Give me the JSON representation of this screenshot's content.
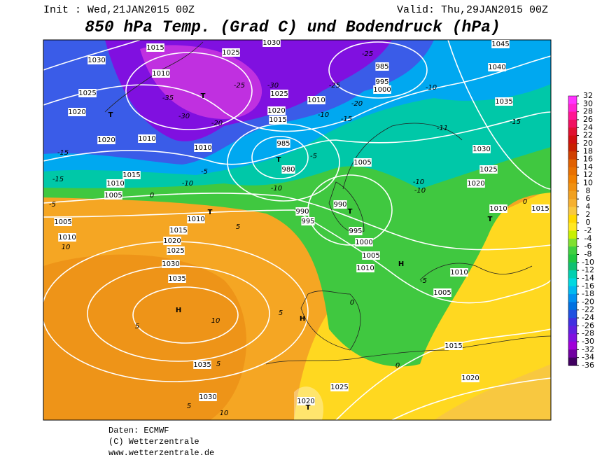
{
  "header": {
    "init": "Init : Wed,21JAN2015 00Z",
    "valid": "Valid: Thu,29JAN2015 00Z",
    "title": "850 hPa Temp. (Grad C) und Bodendruck (hPa)"
  },
  "legend": {
    "ticks": [
      32,
      30,
      28,
      26,
      24,
      22,
      20,
      18,
      16,
      14,
      12,
      10,
      8,
      6,
      4,
      2,
      0,
      -2,
      -4,
      -6,
      -8,
      -10,
      -12,
      -14,
      -16,
      -18,
      -20,
      -22,
      -24,
      -26,
      -28,
      -30,
      -32,
      -34,
      -36
    ],
    "colors": [
      "#ff33ff",
      "#ff22d0",
      "#ff1493",
      "#f01060",
      "#e01030",
      "#d01010",
      "#c82000",
      "#d04000",
      "#e06000",
      "#e87000",
      "#f08000",
      "#f09010",
      "#f0a020",
      "#f5b030",
      "#f8c840",
      "#ffd800",
      "#ffe820",
      "#c8f000",
      "#80e030",
      "#40d040",
      "#20c840",
      "#10c070",
      "#00d0b0",
      "#00d8e0",
      "#00b8f0",
      "#0090f0",
      "#0070e0",
      "#2050e0",
      "#4030e0",
      "#6020e0",
      "#8010e0",
      "#a000d8",
      "#7000a0",
      "#400060"
    ]
  },
  "map": {
    "labels": [
      "1030",
      "1025",
      "1020",
      "1020",
      "1015",
      "1010",
      "1005",
      "1005",
      "1010",
      "10",
      "1010",
      "1015",
      "1020",
      "1025",
      "1030",
      "1035",
      "H",
      "10",
      "5",
      "1035",
      "5",
      "1030",
      "5",
      "10",
      "1025",
      "1020",
      "T",
      "H",
      "5",
      "0",
      "1015",
      "1020",
      "0",
      "1010",
      "1005",
      "H",
      "1010",
      "1005",
      "1000",
      "995",
      "990",
      "T",
      "995",
      "990",
      "980",
      "T",
      "985",
      "1005",
      "1000",
      "995",
      "985",
      "-25",
      "1045",
      "1040",
      "1035",
      "1030",
      "1025",
      "1020",
      "1010",
      "1015",
      "T",
      "0",
      "-15",
      "-11",
      "-10",
      "-10",
      "-10",
      "-5",
      "1030",
      "1025",
      "1015",
      "1010",
      "-35",
      "T",
      "-30",
      "-20",
      "1010",
      "1010",
      "T",
      "-15",
      "-15",
      "-5",
      "-10",
      "-5",
      "1015",
      "1020",
      "1025",
      "-25",
      "-30",
      "1010",
      "-20",
      "-25",
      "-15",
      "-10",
      "-5",
      "-10",
      "0",
      "5",
      "T"
    ]
  },
  "footer": {
    "source": "Daten: ECMWF",
    "copyright": "(C) Wetterzentrale",
    "url": "www.wetterzentrale.de"
  }
}
